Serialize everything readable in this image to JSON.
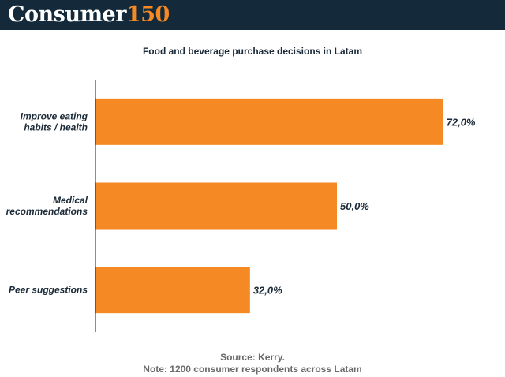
{
  "logo": {
    "word": "Consumer",
    "number": "150"
  },
  "colors": {
    "header_bg": "#142a3a",
    "accent": "#f58a25",
    "bar": "#f58a25"
  },
  "chart_data": {
    "type": "bar",
    "orientation": "horizontal",
    "title": "Food and beverage purchase decisions in Latam",
    "categories": [
      [
        "Improve eating",
        "habits / health"
      ],
      [
        "Medical",
        "recommendations"
      ],
      [
        "Peer suggestions"
      ]
    ],
    "values": [
      72.0,
      50.0,
      32.0
    ],
    "value_labels": [
      "72,0%",
      "50,0%",
      "32,0%"
    ],
    "xlim": [
      0,
      75
    ],
    "grid": false
  },
  "footer": {
    "source": "Source: Kerry.",
    "note": "Note: 1200 consumer respondents across Latam"
  }
}
